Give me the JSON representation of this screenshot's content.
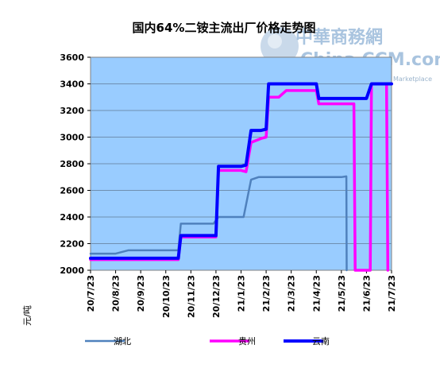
{
  "chart_data": {
    "type": "line",
    "title": "国内64%二铵主流出厂价格走势图",
    "ylabel": "元/吨",
    "xlabel": "",
    "ylim": [
      2000,
      3600
    ],
    "yticks": [
      2000,
      2200,
      2400,
      2600,
      2800,
      3000,
      3200,
      3400,
      3600
    ],
    "xlim": [
      0,
      12.0
    ],
    "categories": [
      "20/7/23",
      "20/8/23",
      "20/9/23",
      "20/10/23",
      "20/11/23",
      "20/12/23",
      "21/1/23",
      "21/2/23",
      "21/3/23",
      "21/4/23",
      "21/5/23",
      "21/6/23",
      "21/7/23"
    ],
    "grid": true,
    "legend_position": "bottom",
    "background": "#99ccff",
    "series": [
      {
        "name": "湖北",
        "color": "#4f81bd",
        "x": [
          0,
          1.0,
          1.5,
          2.0,
          3.0,
          3.5,
          3.6,
          4.0,
          4.9,
          5.1,
          5.5,
          6.1,
          6.4,
          6.7,
          7.0,
          8.0,
          9.0,
          10.0,
          10.2,
          10.21
        ],
        "y": [
          2125,
          2125,
          2150,
          2150,
          2150,
          2150,
          2350,
          2350,
          2350,
          2400,
          2400,
          2400,
          2680,
          2700,
          2700,
          2700,
          2700,
          2700,
          2705,
          2000
        ]
      },
      {
        "name": "贵州",
        "color": "#ff00ff",
        "x": [
          0,
          1.0,
          2.0,
          3.0,
          3.5,
          3.6,
          4.0,
          5.0,
          5.1,
          5.5,
          6.0,
          6.2,
          6.4,
          6.8,
          7.0,
          7.1,
          7.5,
          7.8,
          8.0,
          9.0,
          9.1,
          9.3,
          10.0,
          10.5,
          10.55,
          11.15,
          11.2,
          11.3,
          11.8,
          11.85
        ],
        "y": [
          2080,
          2080,
          2080,
          2080,
          2080,
          2250,
          2250,
          2250,
          2750,
          2750,
          2750,
          2740,
          2960,
          2990,
          3000,
          3300,
          3300,
          3350,
          3350,
          3350,
          3250,
          3250,
          3250,
          3250,
          2000,
          2000,
          3400,
          3400,
          3400,
          2000
        ]
      },
      {
        "name": "云南",
        "color": "#0000ff",
        "x": [
          0,
          1.0,
          2.0,
          3.0,
          3.5,
          3.6,
          4.0,
          5.0,
          5.1,
          5.5,
          6.0,
          6.2,
          6.4,
          6.8,
          7.0,
          7.1,
          7.5,
          8.0,
          9.0,
          9.1,
          9.3,
          10.0,
          11.0,
          11.2,
          11.5,
          12.0
        ],
        "y": [
          2090,
          2090,
          2090,
          2090,
          2090,
          2260,
          2260,
          2260,
          2780,
          2780,
          2780,
          2790,
          3050,
          3050,
          3060,
          3400,
          3400,
          3400,
          3400,
          3290,
          3290,
          3290,
          3290,
          3400,
          3400,
          3400
        ]
      }
    ]
  },
  "watermark": {
    "brand": "中華商務網",
    "domain": "China CCM.com",
    "tagline": "Marketplace"
  }
}
